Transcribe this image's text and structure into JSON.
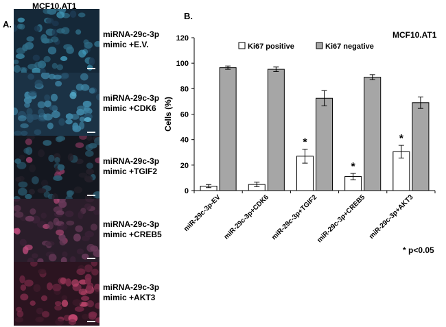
{
  "panel_a": {
    "letter": "A.",
    "title": "MCF10.AT1",
    "images": [
      {
        "line1": "miRNA-29c-3p",
        "line2": "mimic +E.V.",
        "base": "#152838",
        "n1": "#2f6c86",
        "n2": "#45a6c8",
        "tint": "#1d3a52"
      },
      {
        "line1": "miRNA-29c-3p",
        "line2": "mimic +CDK6",
        "base": "#1b3245",
        "n1": "#3f86a6",
        "n2": "#5cbbdb",
        "tint": "#27506b"
      },
      {
        "line1": "miRNA-29c-3p",
        "line2": "mimic +TGIF2",
        "base": "#14171f",
        "n1": "#2a5b70",
        "n2": "#8e3a63",
        "tint": "#24202a"
      },
      {
        "line1": "miRNA-29c-3p",
        "line2": "mimic +CREB5",
        "base": "#2a1d2a",
        "n1": "#6a3a5a",
        "n2": "#b84a7a",
        "tint": "#3a2236"
      },
      {
        "line1": "miRNA-29c-3p",
        "line2": "mimic +AKT3",
        "base": "#2b1420",
        "n1": "#7a2a48",
        "n2": "#c94a72",
        "tint": "#3d1a2a"
      }
    ]
  },
  "panel_b": {
    "letter": "B.",
    "cell_line": "MCF10.AT1",
    "significance_note": "* p<0.05"
  },
  "chart_data": {
    "type": "bar",
    "categories": [
      "miR-29c-3p-EV",
      "miR-29c-3p+CDK6",
      "miR-29c-3p+TGIF2",
      "miR-29c-3p+CREB5",
      "miR-29c-3p+AKT3"
    ],
    "series": [
      {
        "name": "Ki67 positive",
        "values": [
          3.5,
          4.8,
          27,
          11,
          30.5
        ],
        "errors": [
          1.2,
          1.8,
          5.5,
          2.5,
          5
        ],
        "color": "#ffffff"
      },
      {
        "name": "Ki67  negative",
        "values": [
          96.5,
          95.2,
          72.5,
          89,
          69
        ],
        "errors": [
          1.3,
          1.8,
          6,
          2,
          4.5
        ],
        "color": "#a6a6a6"
      }
    ],
    "significant": [
      "",
      "",
      "*",
      "*",
      "*"
    ],
    "ylabel": "Cells (%)",
    "ylim": [
      0,
      120
    ],
    "yticks": [
      0,
      20,
      40,
      60,
      80,
      100,
      120
    ],
    "legend_position": "top",
    "grid": false
  }
}
